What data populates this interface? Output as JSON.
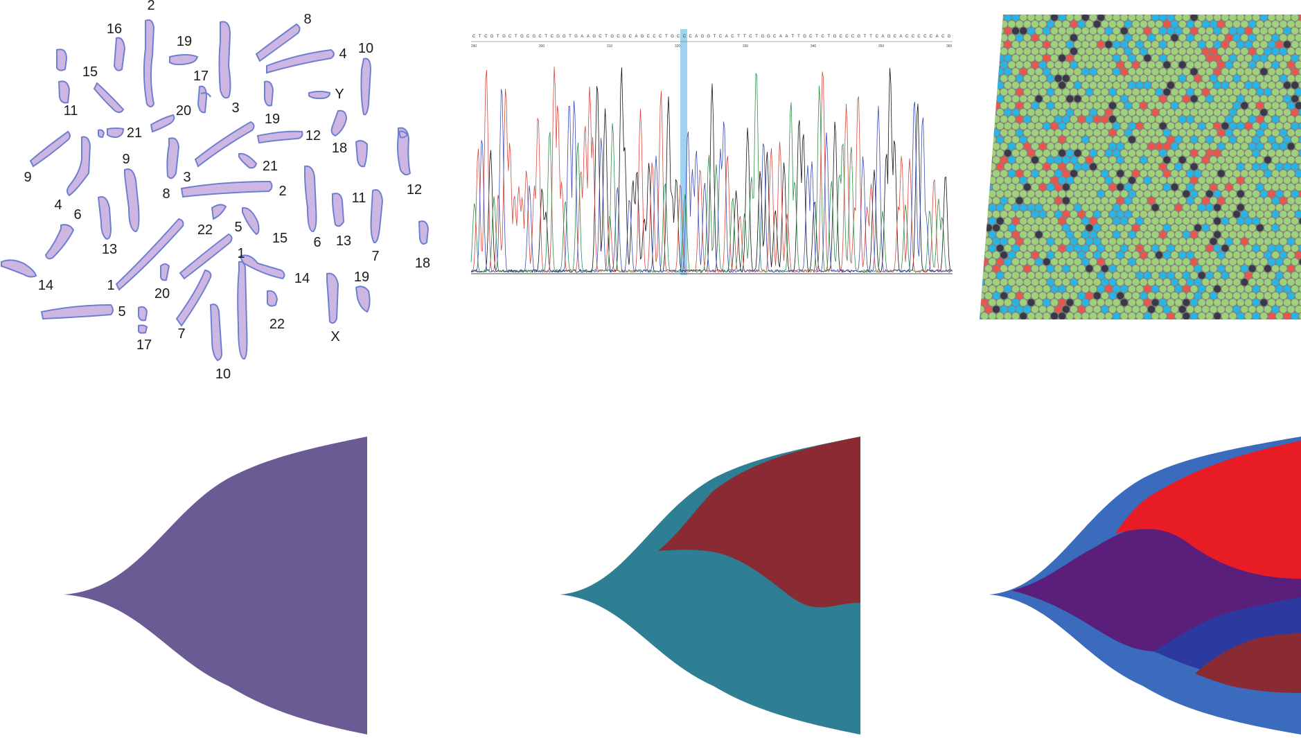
{
  "karyotype": {
    "labels": [
      "2",
      "16",
      "19",
      "8",
      "15",
      "4",
      "10",
      "17",
      "Y",
      "11",
      "3",
      "20",
      "19",
      "21",
      "12",
      "18",
      "9",
      "9",
      "21",
      "3",
      "4",
      "8",
      "2",
      "11",
      "12",
      "6",
      "22",
      "5",
      "13",
      "15",
      "6",
      "13",
      "7",
      "18",
      "14",
      "1",
      "1",
      "20",
      "14",
      "19",
      "5",
      "17",
      "22",
      "7",
      "X",
      "10"
    ]
  },
  "chromatogram": {
    "highlight_color": "#7fc3e8",
    "trace_colors": [
      "#111111",
      "#d9453c",
      "#2f8c4a",
      "#3b49b8"
    ],
    "base_sequence": "CTCGTGCTGCGCTCGGTGAAGCTGCGCAGCCCTGCCCAGGTCACTTCTGGCAATTGCTCTGCCCGTTCAGCACCCCCACG",
    "position_ticks": [
      "290",
      "300",
      "310",
      "320",
      "330",
      "340",
      "350",
      "360"
    ]
  },
  "bead_array": {
    "colors": {
      "green": "#9fd07a",
      "blue": "#28b5e3",
      "red": "#e8574e",
      "dark": "#3a3a46",
      "background": "#808080"
    }
  },
  "fishplots": [
    {
      "clones": [
        {
          "color": "#6b5b95"
        }
      ]
    },
    {
      "clones": [
        {
          "color": "#2e7f93"
        },
        {
          "color": "#8a2a32"
        }
      ]
    },
    {
      "clones": [
        {
          "color": "#3b6bbd"
        },
        {
          "color": "#5a1f7a"
        },
        {
          "color": "#e71c24"
        },
        {
          "color": "#2c3aa0"
        },
        {
          "color": "#8a2a32"
        }
      ]
    }
  ]
}
